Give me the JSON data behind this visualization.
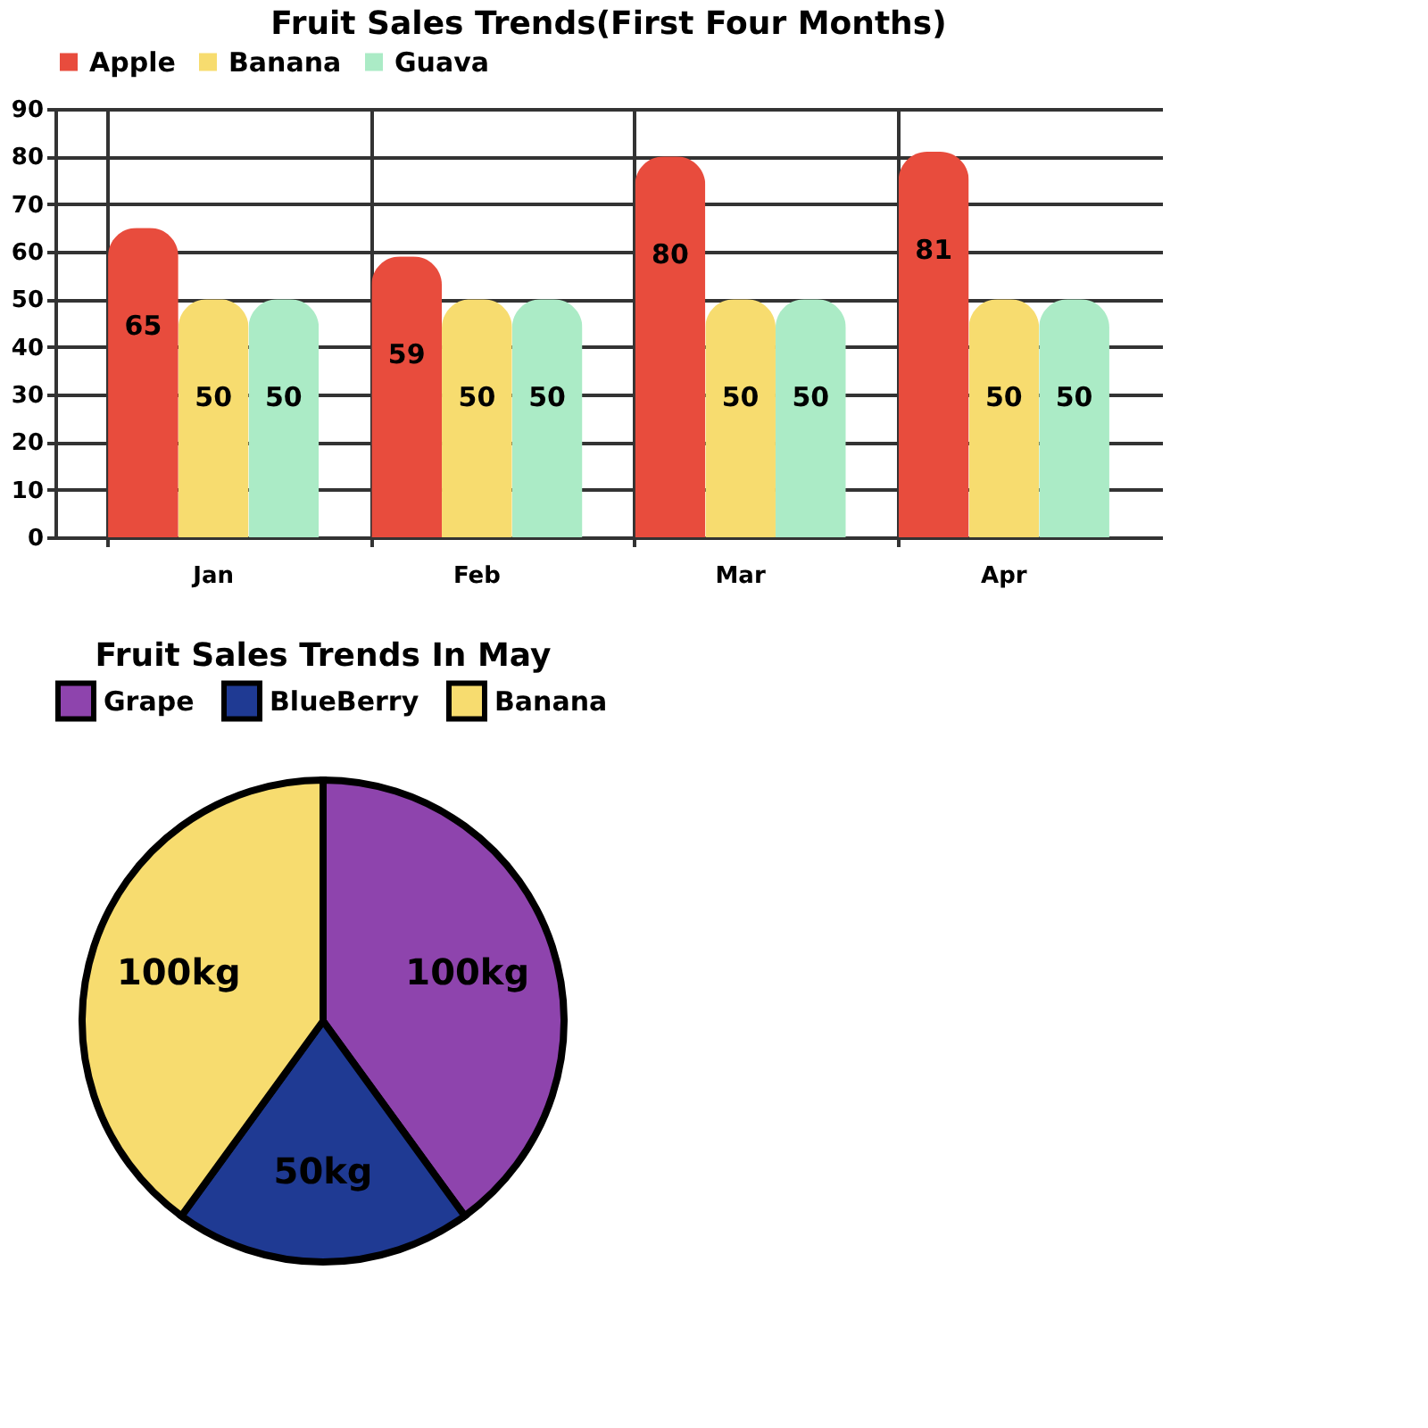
{
  "chart_data": [
    {
      "type": "bar",
      "title": "Fruit Sales Trends(First Four Months)",
      "categories": [
        "Jan",
        "Feb",
        "Mar",
        "Apr"
      ],
      "series": [
        {
          "name": "Apple",
          "color": "#e84c3d",
          "values": [
            65,
            59,
            80,
            81
          ]
        },
        {
          "name": "Banana",
          "color": "#f7dc6f",
          "values": [
            50,
            50,
            50,
            50
          ]
        },
        {
          "name": "Guava",
          "color": "#abebc6",
          "values": [
            50,
            50,
            50,
            50
          ]
        }
      ],
      "ylim": [
        0,
        90
      ],
      "yticks": [
        0,
        10,
        20,
        30,
        40,
        50,
        60,
        70,
        80,
        90
      ],
      "grid": true,
      "legend": "top",
      "data_labels": true
    },
    {
      "type": "pie",
      "title": "Fruit Sales Trends In May",
      "categories": [
        "Grape",
        "BlueBerry",
        "Banana"
      ],
      "values": [
        100,
        50,
        100
      ],
      "colors": [
        "#8e44ad",
        "#1f3a93",
        "#f7dc6f"
      ],
      "value_labels": [
        "100kg",
        "50kg",
        "100kg"
      ],
      "legend": "top"
    }
  ]
}
